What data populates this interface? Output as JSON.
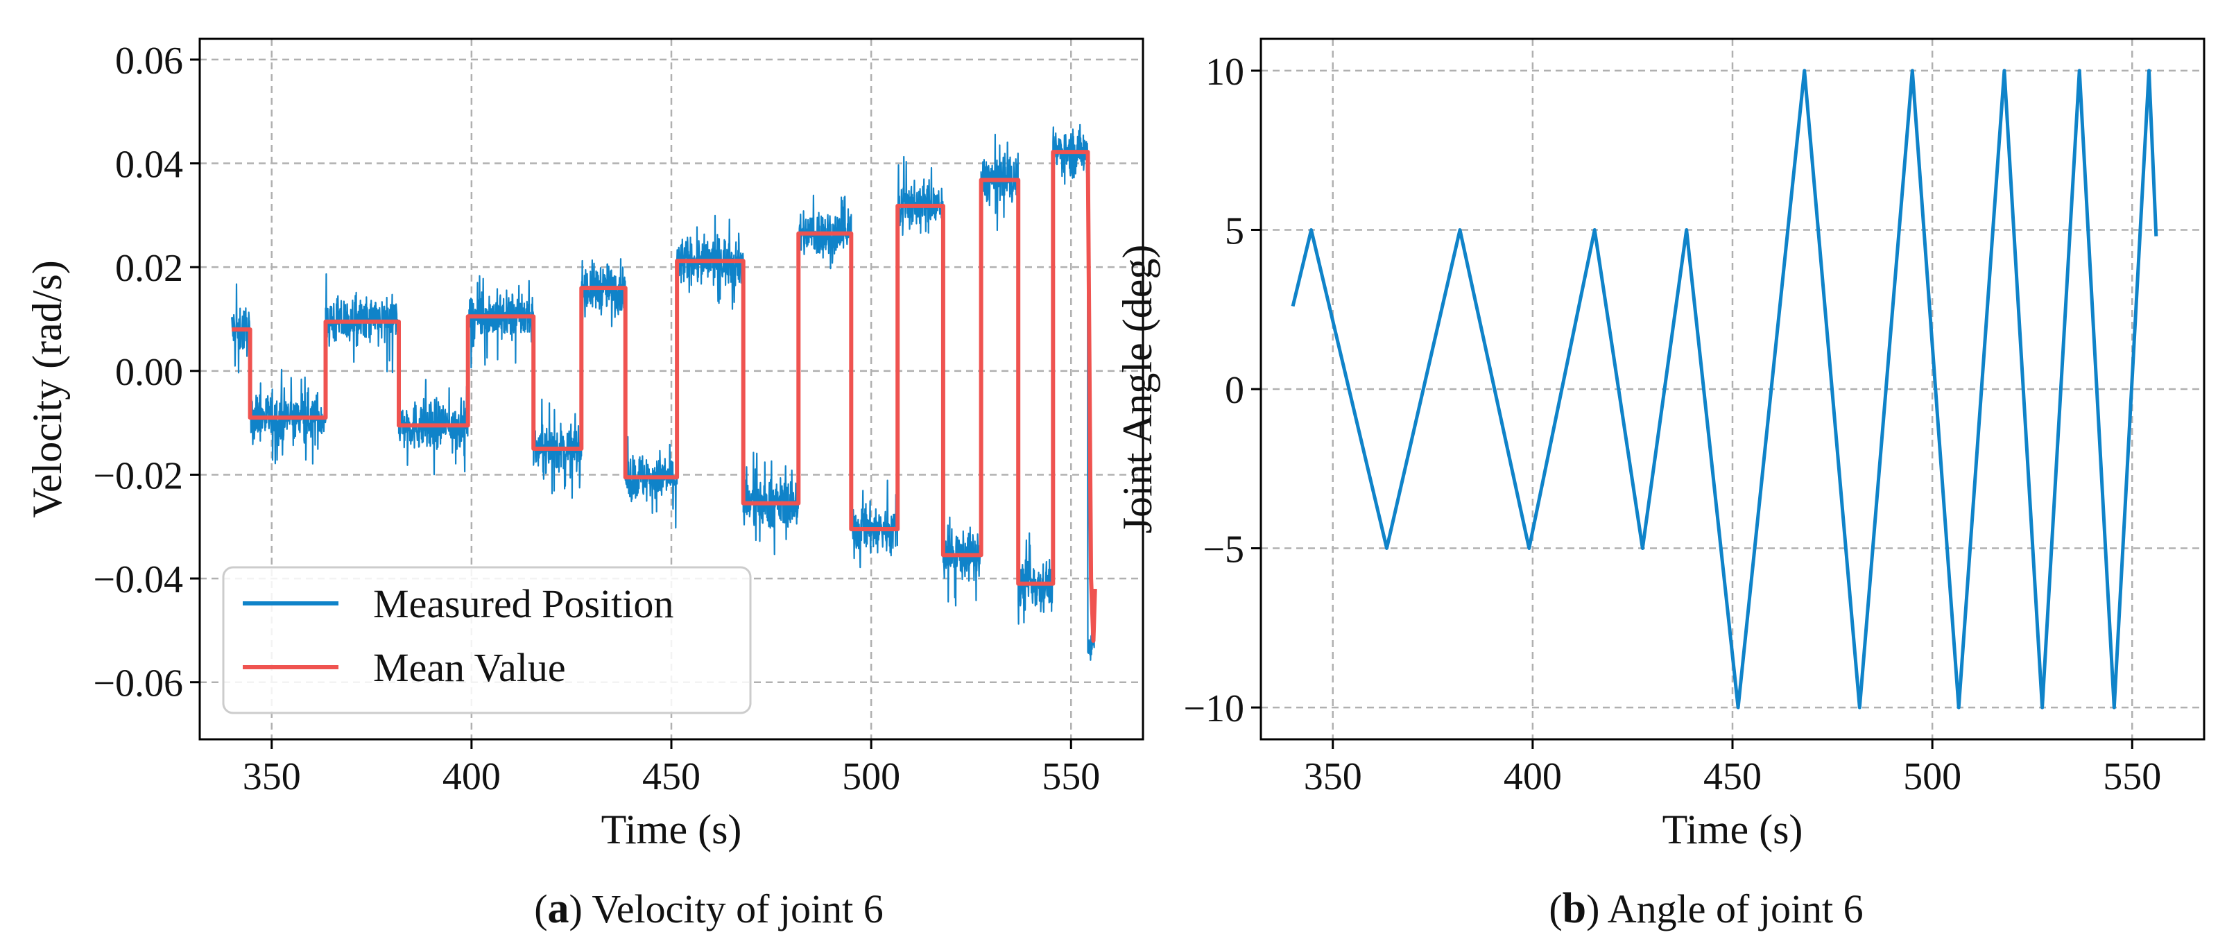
{
  "chart_data": [
    {
      "type": "line",
      "title": "",
      "caption_letter": "a",
      "caption": "Velocity of joint 6",
      "xlabel": "Time (s)",
      "ylabel": "Velocity (rad/s)",
      "xlim": [
        332,
        568
      ],
      "ylim": [
        -0.071,
        0.064
      ],
      "xticks": [
        350,
        400,
        450,
        500,
        550
      ],
      "yticks": [
        -0.06,
        -0.04,
        -0.02,
        0.0,
        0.02,
        0.04,
        0.06
      ],
      "ytick_labels": [
        "−0.06",
        "−0.04",
        "−0.02",
        "0.00",
        "0.02",
        "0.04",
        "0.06"
      ],
      "grid": true,
      "legend": {
        "placement": "bottom-left",
        "entries": [
          "Measured Position",
          "Mean Value"
        ]
      },
      "noise_amplitude": 0.0055,
      "series": [
        {
          "name": "Measured Position",
          "color": "#0f83c9",
          "style": "noisy",
          "segments": [
            {
              "x0": 340,
              "x1": 344.6,
              "mean": 0.008
            },
            {
              "x0": 344.6,
              "x1": 363.5,
              "mean": -0.009
            },
            {
              "x0": 363.5,
              "x1": 381.8,
              "mean": 0.0095
            },
            {
              "x0": 381.8,
              "x1": 399.1,
              "mean": -0.0105
            },
            {
              "x0": 399.1,
              "x1": 415.5,
              "mean": 0.0105
            },
            {
              "x0": 415.5,
              "x1": 427.5,
              "mean": -0.015
            },
            {
              "x0": 427.5,
              "x1": 438.5,
              "mean": 0.016
            },
            {
              "x0": 438.5,
              "x1": 451.4,
              "mean": -0.0205
            },
            {
              "x0": 451.4,
              "x1": 468.0,
              "mean": 0.0212
            },
            {
              "x0": 468.0,
              "x1": 481.8,
              "mean": -0.0255
            },
            {
              "x0": 481.8,
              "x1": 495.0,
              "mean": 0.0265
            },
            {
              "x0": 495.0,
              "x1": 506.6,
              "mean": -0.0305
            },
            {
              "x0": 506.6,
              "x1": 518.0,
              "mean": 0.0318
            },
            {
              "x0": 518.0,
              "x1": 527.5,
              "mean": -0.0355
            },
            {
              "x0": 527.5,
              "x1": 536.8,
              "mean": 0.0368
            },
            {
              "x0": 536.8,
              "x1": 545.5,
              "mean": -0.041
            },
            {
              "x0": 545.5,
              "x1": 554.2,
              "mean": 0.0422
            },
            {
              "x0": 554.2,
              "x1": 556.0,
              "mean": -0.052
            }
          ]
        },
        {
          "name": "Mean Value",
          "color": "#ef5350",
          "style": "step",
          "tail_points": [
            [
              554.2,
              0.0422
            ],
            [
              555.0,
              -0.04
            ],
            [
              555.6,
              -0.052
            ],
            [
              556.0,
              -0.042
            ]
          ]
        }
      ]
    },
    {
      "type": "line",
      "title": "",
      "caption_letter": "b",
      "caption": "Angle of joint 6",
      "xlabel": "Time (s)",
      "ylabel": "Joint Angle (deg)",
      "xlim": [
        332,
        568
      ],
      "ylim": [
        -11.0,
        11.0
      ],
      "xticks": [
        350,
        400,
        450,
        500,
        550
      ],
      "yticks": [
        -10,
        -5,
        0,
        5,
        10
      ],
      "ytick_labels": [
        "−10",
        "−5",
        "0",
        "5",
        "10"
      ],
      "grid": true,
      "series": [
        {
          "name": "Joint Angle",
          "color": "#0f83c9",
          "x": [
            340,
            344.6,
            363.5,
            381.8,
            399.1,
            415.5,
            427.5,
            438.5,
            451.4,
            468.0,
            481.8,
            495.0,
            506.6,
            518.0,
            527.5,
            536.8,
            545.5,
            554.2,
            556.0
          ],
          "y": [
            2.6,
            5,
            -5,
            5,
            -5,
            5,
            -5,
            5,
            -10,
            10,
            -10,
            10,
            -10,
            10,
            -10,
            10,
            -10,
            10,
            4.8
          ]
        }
      ]
    }
  ]
}
